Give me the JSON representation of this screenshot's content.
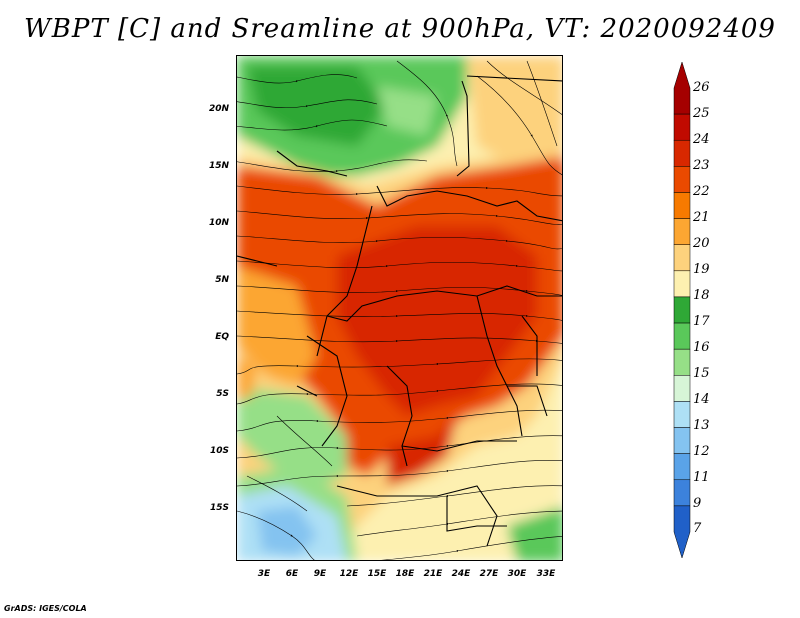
{
  "title": "WBPT [C] and Sreamline at 900hPa, VT: 2020092409",
  "footer": "GrADS: IGES/COLA",
  "map": {
    "lat_labels": [
      "20N",
      "15N",
      "10N",
      "5N",
      "EQ",
      "5S",
      "10S",
      "15S"
    ],
    "lon_labels": [
      "3E",
      "6E",
      "9E",
      "12E",
      "15E",
      "18E",
      "21E",
      "24E",
      "27E",
      "30E",
      "33E"
    ]
  },
  "colorbar": {
    "labels": [
      "26",
      "25",
      "24",
      "23",
      "22",
      "21",
      "20",
      "19",
      "18",
      "17",
      "16",
      "15",
      "14",
      "13",
      "12",
      "11",
      "9",
      "7"
    ],
    "colors": [
      "#a50000",
      "#c00a00",
      "#d82800",
      "#ea4a00",
      "#f77a00",
      "#fca632",
      "#fdd27d",
      "#fdf0b0",
      "#2fa836",
      "#5ac85a",
      "#96df87",
      "#d7f5d7",
      "#aee0f5",
      "#84c3f0",
      "#5aa3e8",
      "#3c82dc",
      "#2060c8"
    ]
  }
}
